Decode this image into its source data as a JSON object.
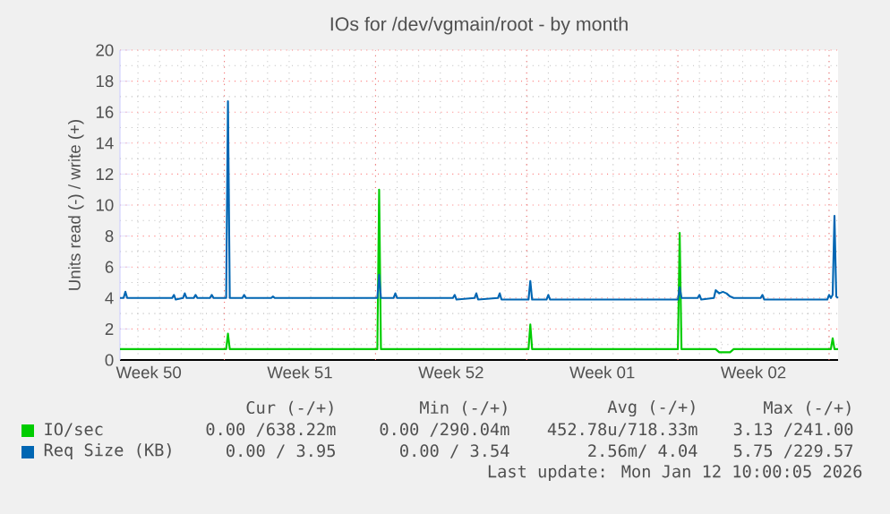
{
  "chart_data": {
    "type": "line",
    "title": "IOs for /dev/vgmain/root - by month",
    "ylabel": "Units read (-) / write (+)",
    "xlim": [
      "2025-12-10T04:00",
      "2026-01-12T10:00"
    ],
    "ylim": [
      0,
      20
    ],
    "xticks": [
      {
        "value": "2025-12-11T12:00",
        "label": "Week 50"
      },
      {
        "value": "2025-12-18T12:00",
        "label": "Week 51"
      },
      {
        "value": "2025-12-25T12:00",
        "label": "Week 52"
      },
      {
        "value": "2026-01-01T12:00",
        "label": "Week 01"
      },
      {
        "value": "2026-01-08T12:00",
        "label": "Week 02"
      },
      {
        "value": "2025-12-15T00:00",
        "label": null
      },
      {
        "value": "2025-12-22T00:00",
        "label": null
      },
      {
        "value": "2025-12-29T00:00",
        "label": null
      },
      {
        "value": "2026-01-05T00:00",
        "label": null
      },
      {
        "value": "2026-01-12T00:00",
        "label": null
      }
    ],
    "yticks": [
      0,
      2,
      4,
      6,
      8,
      10,
      12,
      14,
      16,
      18,
      20
    ],
    "grid": true,
    "legend": "bottom",
    "marker": "none",
    "line_style": "solid",
    "series": [
      {
        "name": "IO/sec",
        "color": "#00cc00",
        "x": [
          "2025-12-10T04:00",
          "2025-12-15T02:00",
          "2025-12-15T04:00",
          "2025-12-15T06:00",
          "2025-12-22T02:00",
          "2025-12-22T04:00",
          "2025-12-22T06:00",
          "2025-12-29T02:00",
          "2025-12-29T04:00",
          "2025-12-29T06:00",
          "2026-01-05T00:00",
          "2026-01-05T02:00",
          "2026-01-05T04:00",
          "2026-01-06T18:00",
          "2026-01-06T22:00",
          "2026-01-07T10:00",
          "2026-01-07T14:00",
          "2026-01-12T02:00",
          "2026-01-12T04:00",
          "2026-01-12T06:00",
          "2026-01-12T10:00"
        ],
        "values": [
          0.7,
          0.7,
          1.7,
          0.7,
          0.7,
          11.0,
          0.7,
          0.7,
          2.3,
          0.7,
          0.7,
          8.2,
          0.7,
          0.7,
          0.5,
          0.5,
          0.7,
          0.7,
          1.4,
          0.7,
          0.7
        ]
      },
      {
        "name": "Req Size (KB)",
        "color": "#0066b3",
        "x": [
          "2025-12-10T04:00",
          "2025-12-10T08:00",
          "2025-12-10T10:00",
          "2025-12-10T12:00",
          "2025-12-12T14:00",
          "2025-12-12T16:00",
          "2025-12-12T18:00",
          "2025-12-13T02:00",
          "2025-12-13T04:00",
          "2025-12-13T06:00",
          "2025-12-13T14:00",
          "2025-12-13T16:00",
          "2025-12-13T18:00",
          "2025-12-14T08:00",
          "2025-12-14T10:00",
          "2025-12-14T12:00",
          "2025-12-15T02:00",
          "2025-12-15T04:00",
          "2025-12-15T06:00",
          "2025-12-15T20:00",
          "2025-12-15T22:00",
          "2025-12-16T00:00",
          "2025-12-17T04:00",
          "2025-12-17T06:00",
          "2025-12-17T08:00",
          "2025-12-22T02:00",
          "2025-12-22T04:00",
          "2025-12-22T06:00",
          "2025-12-22T20:00",
          "2025-12-22T22:00",
          "2025-12-23T00:00",
          "2025-12-25T14:00",
          "2025-12-25T16:00",
          "2025-12-25T18:00",
          "2025-12-26T14:00",
          "2025-12-26T16:00",
          "2025-12-26T18:00",
          "2025-12-27T16:00",
          "2025-12-27T18:00",
          "2025-12-27T20:00",
          "2025-12-29T02:00",
          "2025-12-29T04:00",
          "2025-12-29T06:00",
          "2025-12-29T22:00",
          "2025-12-30T00:00",
          "2025-12-30T02:00",
          "2026-01-05T00:00",
          "2026-01-05T02:00",
          "2026-01-05T04:00",
          "2026-01-05T22:00",
          "2026-01-06T00:00",
          "2026-01-06T02:00",
          "2026-01-06T16:00",
          "2026-01-06T18:00",
          "2026-01-06T22:00",
          "2026-01-07T02:00",
          "2026-01-07T06:00",
          "2026-01-07T10:00",
          "2026-01-07T14:00",
          "2026-01-08T20:00",
          "2026-01-08T22:00",
          "2026-01-09T00:00",
          "2026-01-11T22:00",
          "2026-01-12T00:00",
          "2026-01-12T02:00",
          "2026-01-12T04:00",
          "2026-01-12T06:00",
          "2026-01-12T08:00",
          "2026-01-12T10:00"
        ],
        "values": [
          4.0,
          4.0,
          4.4,
          4.0,
          4.0,
          4.2,
          3.9,
          4.0,
          4.3,
          4.0,
          4.0,
          4.2,
          4.0,
          4.0,
          4.2,
          4.0,
          4.0,
          16.7,
          4.0,
          4.0,
          4.2,
          4.0,
          4.0,
          4.1,
          4.0,
          4.0,
          5.5,
          4.0,
          4.0,
          4.3,
          4.0,
          4.0,
          4.2,
          3.9,
          4.0,
          4.3,
          3.9,
          4.0,
          4.3,
          3.9,
          3.9,
          5.1,
          3.9,
          3.9,
          4.2,
          3.9,
          3.9,
          4.7,
          4.0,
          4.0,
          4.2,
          3.9,
          4.0,
          4.5,
          4.3,
          4.4,
          4.3,
          4.1,
          4.0,
          4.0,
          4.2,
          3.9,
          3.9,
          4.2,
          4.0,
          4.2,
          9.3,
          4.1,
          4.0
        ]
      }
    ],
    "annotations": [
      "Cur (-/+)",
      "Min (-/+)",
      "Avg (-/+)",
      "Max (-/+)",
      "0.00 /638.22m",
      "0.00 /290.04m",
      "452.78u/718.33m",
      "3.13 /241.00",
      "0.00 / 3.95",
      "0.00 / 3.54",
      "2.56m/ 4.04",
      "5.75 /229.57",
      "Last update: Mon Jan 12 10:00:05 2026"
    ]
  }
}
